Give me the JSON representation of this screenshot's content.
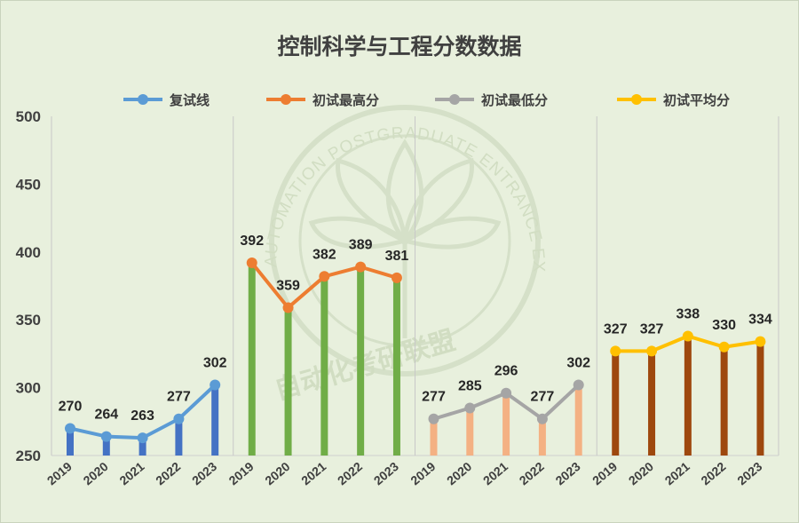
{
  "chart_data": {
    "type": "bar+line",
    "title": "控制科学与工程分数数据",
    "ylim": [
      250,
      500
    ],
    "yticks": [
      250,
      300,
      350,
      400,
      450,
      500
    ],
    "legend_position": "top",
    "grid": false,
    "groups": [
      {
        "name": "复试线",
        "color": "#5b9bd5",
        "bar_color": "#4472c4",
        "categories": [
          "2019",
          "2020",
          "2021",
          "2022",
          "2023"
        ],
        "values": [
          270,
          264,
          263,
          277,
          302
        ],
        "labels": [
          "270",
          "264",
          "263",
          "277",
          "302"
        ]
      },
      {
        "name": "初试最高分",
        "color": "#ed7d31",
        "bar_color": "#70ad47",
        "categories": [
          "2019",
          "2020",
          "2021",
          "2022",
          "2023"
        ],
        "values": [
          392,
          359,
          382,
          389,
          381
        ],
        "labels": [
          "392",
          "359",
          "382",
          "389",
          "381"
        ]
      },
      {
        "name": "初试最低分",
        "color": "#a5a5a5",
        "bar_color": "#f4b183",
        "categories": [
          "2019",
          "2020",
          "2021",
          "2022",
          "2023"
        ],
        "values": [
          277,
          285,
          296,
          277,
          302
        ],
        "labels": [
          "277",
          "285",
          "296",
          "277",
          "302"
        ]
      },
      {
        "name": "初试平均分",
        "color": "#ffc000",
        "bar_color": "#9e480e",
        "categories": [
          "2019",
          "2020",
          "2021",
          "2022",
          "2023"
        ],
        "values": [
          327,
          327,
          338,
          330,
          334
        ],
        "labels": [
          "327",
          "327",
          "338",
          "330",
          "334"
        ]
      }
    ]
  },
  "watermark": {
    "arc_text": "AUTOMATION POSTGRADUATE ENTRANCE EXAMINATION ALLIANCE",
    "cn_text": "自动化考研联盟"
  }
}
